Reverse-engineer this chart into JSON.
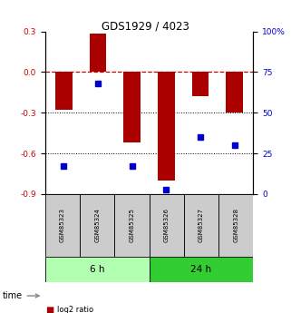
{
  "title": "GDS1929 / 4023",
  "categories": [
    "GSM85323",
    "GSM85324",
    "GSM85325",
    "GSM85326",
    "GSM85327",
    "GSM85328"
  ],
  "log2_ratio": [
    -0.28,
    0.28,
    -0.52,
    -0.8,
    -0.18,
    -0.3
  ],
  "percentile_rank": [
    17,
    68,
    17,
    3,
    35,
    30
  ],
  "ylim_left": [
    -0.9,
    0.3
  ],
  "ylim_right": [
    0,
    100
  ],
  "yticks_left": [
    0.3,
    0.0,
    -0.3,
    -0.6,
    -0.9
  ],
  "yticks_right": [
    100,
    75,
    50,
    25,
    0
  ],
  "group_6h": {
    "label": "6 h",
    "color": "#b2ffb2"
  },
  "group_24h": {
    "label": "24 h",
    "color": "#33cc33"
  },
  "bar_color": "#aa0000",
  "dot_color": "#0000cc",
  "bar_width": 0.5,
  "zero_line_color": "#cc0000",
  "grid_color": "#000000",
  "box_color": "#cccccc",
  "legend_log2_color": "#aa0000",
  "legend_pct_color": "#0000cc"
}
